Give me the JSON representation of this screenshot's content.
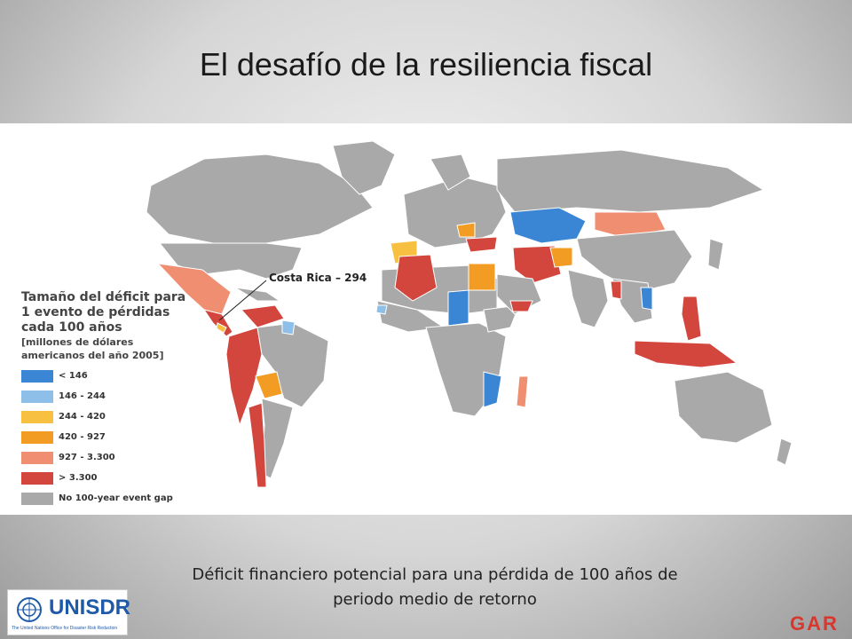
{
  "title": "El desafío de la resiliencia fiscal",
  "legend": {
    "title": "Tamaño del déficit para 1 evento de pérdidas cada 100 años",
    "subtitle": "[millones de dólares americanos del año 2005]",
    "items": [
      {
        "label": "< 146",
        "color": "#3a86d4"
      },
      {
        "label": "146 - 244",
        "color": "#8dbfe8"
      },
      {
        "label": "244 - 420",
        "color": "#f8c040"
      },
      {
        "label": "420 - 927",
        "color": "#f39c23"
      },
      {
        "label": "927 - 3.300",
        "color": "#f08e72"
      },
      {
        "label": "> 3.300",
        "color": "#d2463e"
      },
      {
        "label": "No 100-year event gap",
        "color": "#a9a9a9"
      }
    ]
  },
  "annotation": "Costa Rica – 294",
  "caption": {
    "line1": "Déficit financiero potencial para una pérdida de 100 años de",
    "line2": "periodo medio de retorno"
  },
  "logo": {
    "text": "UNISDR",
    "tagline": "The United Nations Office for Disaster Risk Reduction"
  },
  "brand": "GAR"
}
